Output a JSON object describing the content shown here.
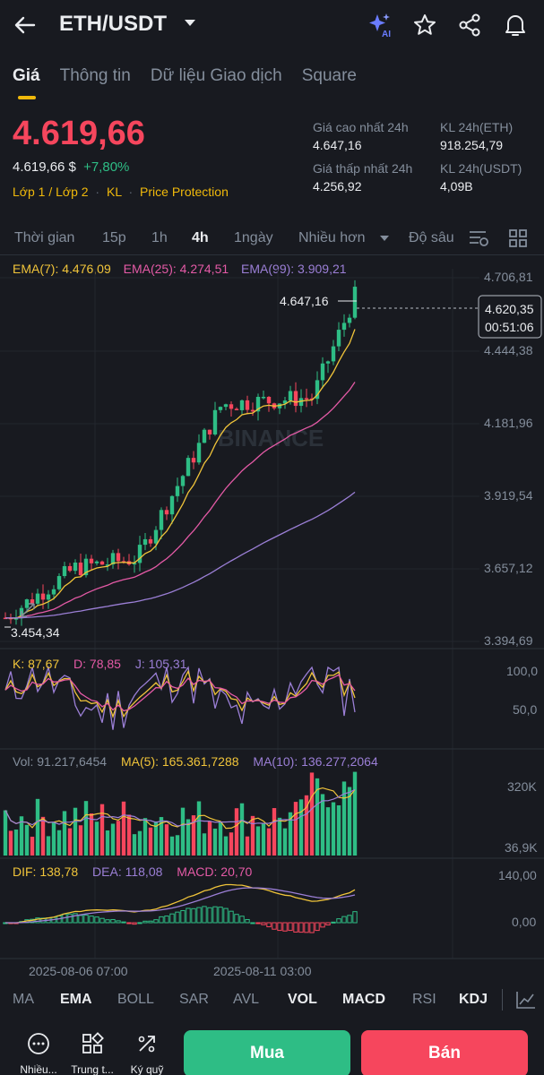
{
  "header": {
    "pair": "ETH/USDT",
    "icons": [
      "back-arrow-icon",
      "chevron-down-icon",
      "ai-sparkle-icon",
      "star-icon",
      "share-icon",
      "bell-icon"
    ],
    "ai_label": "AI"
  },
  "tabs": [
    {
      "label": "Giá",
      "active": true
    },
    {
      "label": "Thông tin",
      "active": false
    },
    {
      "label": "Dữ liệu Giao dịch",
      "active": false
    },
    {
      "label": "Square",
      "active": false
    }
  ],
  "price": {
    "last": "4.619,66",
    "fiat": "4.619,66 $",
    "change": "+7,80%",
    "tags": [
      "Lớp 1 / Lớp 2",
      "KL",
      "Price Protection"
    ]
  },
  "stats": {
    "high_label": "Giá cao nhất 24h",
    "high": "4.647,16",
    "low_label": "Giá thấp nhất 24h",
    "low": "4.256,92",
    "vol_eth_label": "KL 24h(ETH)",
    "vol_eth": "918.254,79",
    "vol_usdt_label": "KL 24h(USDT)",
    "vol_usdt": "4,09B"
  },
  "intervals": {
    "time": "Thời gian",
    "i15": "15p",
    "i1h": "1h",
    "i4h": "4h",
    "i1d": "1ngày",
    "more": "Nhiều hơn",
    "depth": "Độ sâu",
    "selected": "4h"
  },
  "main_legend": {
    "ema7": "EMA(7): 4.476,09",
    "ema25": "EMA(25): 4.274,51",
    "ema99": "EMA(99): 3.909,21"
  },
  "axis": {
    "p1": "4.706,81",
    "p2": "4.444,38",
    "p3": "4.181,96",
    "p4": "3.919,54",
    "p5": "3.657,12",
    "p6": "3.394,69",
    "current": "4.620,35",
    "countdown": "00:51:06",
    "high_mark": "4.647,16",
    "low_mark": "3.454,34",
    "watermark": "BINANCE"
  },
  "kdj_legend": {
    "k": "K: 87,67",
    "d": "D: 78,85",
    "j": "J: 105,31",
    "a1": "100,0",
    "a2": "50,0"
  },
  "vol_legend": {
    "vol": "Vol: 91.217,6454",
    "ma5": "MA(5): 165.361,7288",
    "ma10": "MA(10): 136.277,2064",
    "a1": "320K",
    "a2": "36,9K"
  },
  "macd_legend": {
    "dif": "DIF: 138,78",
    "dea": "DEA: 118,08",
    "macd": "MACD: 20,70",
    "a1": "140,00",
    "a2": "0,00"
  },
  "dates": {
    "d1": "2025-08-06 07:00",
    "d2": "2025-08-11 03:00"
  },
  "indicators": [
    {
      "label": "MA",
      "on": false
    },
    {
      "label": "EMA",
      "on": true
    },
    {
      "label": "BOLL",
      "on": false
    },
    {
      "label": "SAR",
      "on": false
    },
    {
      "label": "AVL",
      "on": false
    },
    {
      "label": "VOL",
      "on": true
    },
    {
      "label": "MACD",
      "on": true
    },
    {
      "label": "RSI",
      "on": false
    },
    {
      "label": "KDJ",
      "on": true
    }
  ],
  "bottom": {
    "more": "Nhiều...",
    "center": "Trung t...",
    "margin": "Ký quỹ",
    "buy": "Mua",
    "sell": "Bán"
  },
  "colors": {
    "up": "#2ebd85",
    "down": "#f6465d",
    "accent": "#f0b90b",
    "ema7": "#f0c43a",
    "ema25": "#e45aa6",
    "ema99": "#9b7fd6",
    "bg": "#181a20"
  },
  "chart_data": {
    "type": "candlestick",
    "interval": "4h",
    "title": "ETH/USDT",
    "ylim": [
      3394.69,
      4706.81
    ],
    "y_ticks": [
      4706.81,
      4444.38,
      4181.96,
      3919.54,
      3657.12,
      3394.69
    ],
    "x_labels": [
      "2025-08-06 07:00",
      "2025-08-11 03:00"
    ],
    "high_marker": 4647.16,
    "low_marker": 3454.34,
    "last_price": 4620.35,
    "ema": {
      "ema7": 4476.09,
      "ema25": 4274.51,
      "ema99": 3909.21
    },
    "kdj": {
      "k": 87.67,
      "d": 78.85,
      "j": 105.31
    },
    "volume": {
      "last": 91217.6454,
      "ma5": 165361.7288,
      "ma10": 136277.2064
    },
    "macd": {
      "dif": 138.78,
      "dea": 118.08,
      "macd": 20.7
    }
  }
}
